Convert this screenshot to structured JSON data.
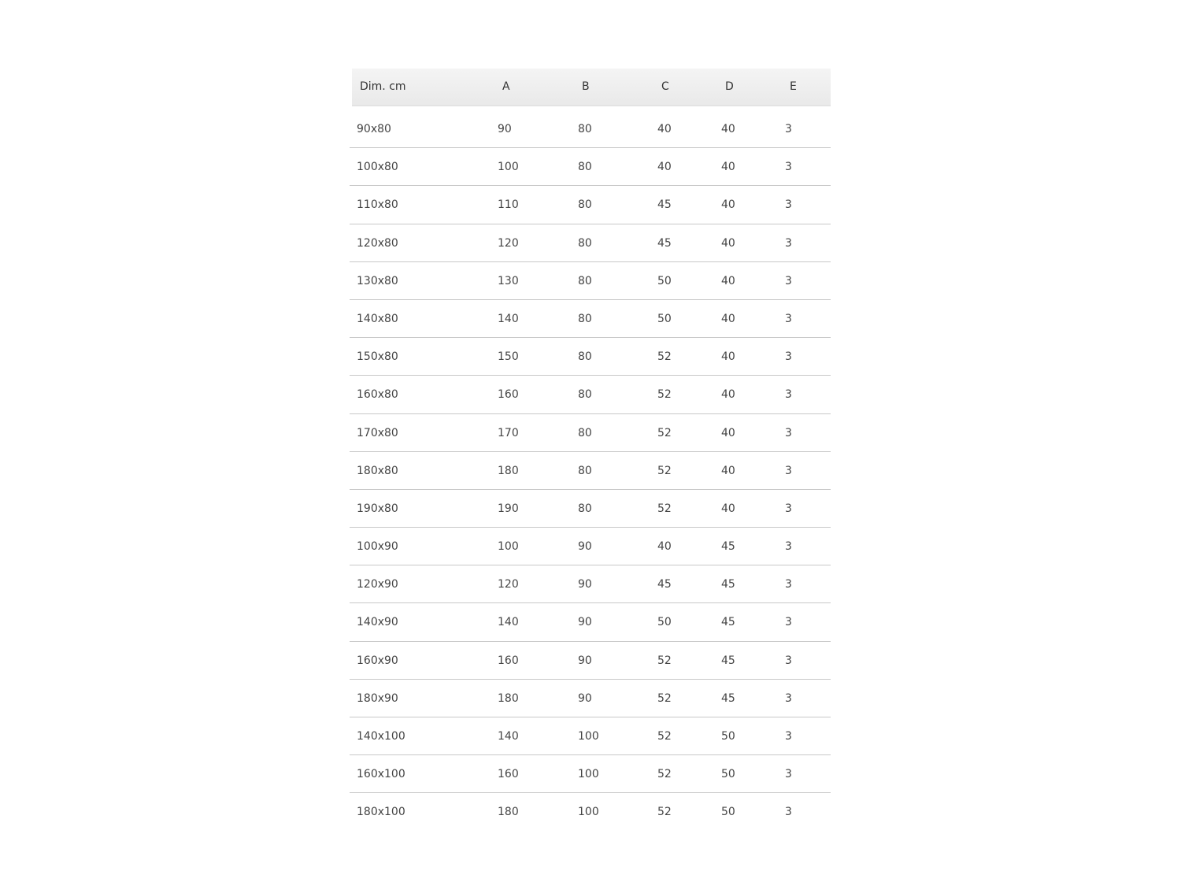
{
  "headers": [
    "Dim. cm",
    "A",
    "B",
    "C",
    "D",
    "E"
  ],
  "rows": [
    [
      "90x80",
      "90",
      "80",
      "40",
      "40",
      "3"
    ],
    [
      "100x80",
      "100",
      "80",
      "40",
      "40",
      "3"
    ],
    [
      "110x80",
      "110",
      "80",
      "45",
      "40",
      "3"
    ],
    [
      "120x80",
      "120",
      "80",
      "45",
      "40",
      "3"
    ],
    [
      "130x80",
      "130",
      "80",
      "50",
      "40",
      "3"
    ],
    [
      "140x80",
      "140",
      "80",
      "50",
      "40",
      "3"
    ],
    [
      "150x80",
      "150",
      "80",
      "52",
      "40",
      "3"
    ],
    [
      "160x80",
      "160",
      "80",
      "52",
      "40",
      "3"
    ],
    [
      "170x80",
      "170",
      "80",
      "52",
      "40",
      "3"
    ],
    [
      "180x80",
      "180",
      "80",
      "52",
      "40",
      "3"
    ],
    [
      "190x80",
      "190",
      "80",
      "52",
      "40",
      "3"
    ],
    [
      "100x90",
      "100",
      "90",
      "40",
      "45",
      "3"
    ],
    [
      "120x90",
      "120",
      "90",
      "45",
      "45",
      "3"
    ],
    [
      "140x90",
      "140",
      "90",
      "50",
      "45",
      "3"
    ],
    [
      "160x90",
      "160",
      "90",
      "52",
      "45",
      "3"
    ],
    [
      "180x90",
      "180",
      "90",
      "52",
      "45",
      "3"
    ],
    [
      "140x100",
      "140",
      "100",
      "52",
      "50",
      "3"
    ],
    [
      "160x100",
      "160",
      "100",
      "52",
      "50",
      "3"
    ],
    [
      "180x100",
      "180",
      "100",
      "52",
      "50",
      "3"
    ]
  ]
}
